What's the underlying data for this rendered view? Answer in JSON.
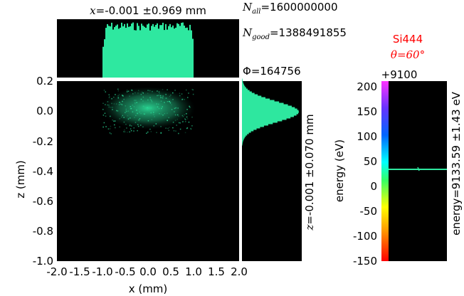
{
  "colors": {
    "plot_bg": "#000000",
    "beam": "#2ee8a0",
    "page_bg": "#ffffff",
    "title_red": "#ff0000"
  },
  "annotations": {
    "top_title_var": "x",
    "top_title_value": "=-0.001 ±0.969 mm",
    "n_all_symbol": "N",
    "n_all_sub": "all",
    "n_all_value": "=1600000000",
    "n_good_symbol": "N",
    "n_good_sub": "good",
    "n_good_value": "=1388491855",
    "phi_symbol": "Φ",
    "phi_value": "=164756",
    "crystal": "Si444",
    "theta_symbol": "θ",
    "theta_value": "=60°",
    "energy_offset": "+9100"
  },
  "chart_data": [
    {
      "type": "heatmap",
      "xlabel": "x (mm)",
      "ylabel": "z (mm)",
      "xlim": [
        -2.0,
        2.0
      ],
      "ylim": [
        -1.0,
        0.2
      ],
      "x_ticks": [
        "-2.0",
        "-1.5",
        "-1.0",
        "-0.5",
        "0.0",
        "0.5",
        "1.0",
        "1.5",
        "2.0"
      ],
      "y_ticks": [
        "0.2",
        "0.0",
        "-0.2",
        "-0.4",
        "-0.6",
        "-0.8",
        "-1.0"
      ],
      "beam_extent_x": [
        -1.0,
        1.0
      ],
      "beam_extent_z": [
        -0.15,
        0.15
      ],
      "grid": false
    },
    {
      "type": "bar",
      "title": "x=-0.001 ±0.969 mm",
      "x_range": [
        -1.0,
        1.0
      ],
      "profile": "flat-top"
    },
    {
      "type": "area",
      "side_label": "z=-0.001 ±0.070 mm",
      "z_center": 0.0,
      "z_sigma": 0.07
    },
    {
      "type": "heatmap",
      "ylabel": "energy (eV)",
      "side_label": "energy=9133.59 ±1.43 eV",
      "offset_label": "+9100",
      "ylim": [
        -150,
        210
      ],
      "y_ticks": [
        "200",
        "150",
        "100",
        "50",
        "0",
        "-50",
        "-100",
        "-150"
      ],
      "line_value": 33.59
    }
  ]
}
